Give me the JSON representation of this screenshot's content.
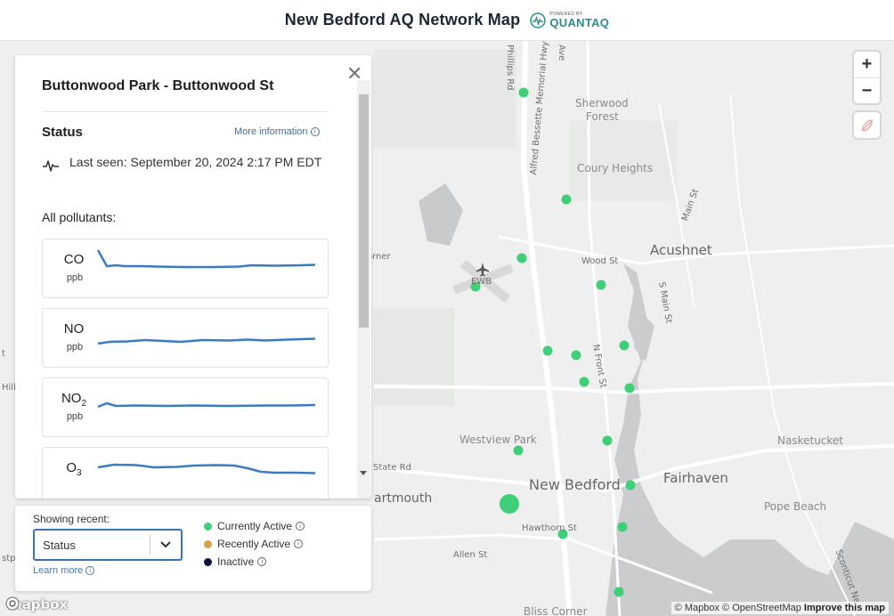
{
  "header": {
    "title": "New Bedford AQ Network Map",
    "logo_small": "POWERED BY",
    "logo_big": "QUANTAQ"
  },
  "map": {
    "zoom_in_label": "+",
    "zoom_out_label": "−",
    "labels": {
      "sherwood_forest_1": "Sherwood",
      "sherwood_forest_2": "Forest",
      "coury_heights": "Coury Heights",
      "acushnet": "Acushnet",
      "wood_st": "Wood St",
      "s_main_st": "S Main St",
      "main_st": "Main St",
      "alfred": "Alfred Bessette Memorial Hwy",
      "phillips": "Phillips Rd",
      "ave": "Ave",
      "ewb": "EWB",
      "orner": "orner",
      "n_front_st": "N Front St",
      "westview_park": "Westview Park",
      "new_bedford": "New Bedford",
      "fairhaven": "Fairhaven",
      "nasketucket": "Nasketucket",
      "pope_beach": "Pope Beach",
      "state_rd": "State Rd",
      "artmouth": "artmouth",
      "hawthorn_st": "Hawthorn St",
      "allen_st": "Allen St",
      "bliss_corner": "Bliss Corner",
      "sconticut": "Sconticut Ne",
      "left_t": "t",
      "left_hill": "Hill",
      "left_stp": "stp"
    },
    "attribution_mapbox": "© Mapbox",
    "attribution_osm": "© OpenStreetMap",
    "attribution_improve": "Improve this map",
    "mapbox_logo": "mapbox",
    "sensor_color": "#3fcf78"
  },
  "panel": {
    "close_label": "✕",
    "site_name": "Buttonwood Park - Buttonwood St",
    "status_heading": "Status",
    "more_information": "More information",
    "last_seen": "Last seen: September 20, 2024 2:17 PM EDT",
    "all_pollutants": "All pollutants:",
    "pollutants": [
      {
        "name": "CO",
        "unit": "ppb"
      },
      {
        "name": "NO",
        "unit": "ppb"
      },
      {
        "name": "NO",
        "sub": "2",
        "unit": "ppb"
      },
      {
        "name": "O",
        "sub": "3",
        "unit": ""
      }
    ],
    "line_color": "#3a7cc4"
  },
  "legend": {
    "showing_recent": "Showing recent:",
    "select_value": "Status",
    "learn_more": "Learn more",
    "items": [
      {
        "label": "Currently Active",
        "color": "#3fcf78"
      },
      {
        "label": "Recently Active",
        "color": "#d9a04a"
      },
      {
        "label": "Inactive",
        "color": "#10123a"
      }
    ]
  }
}
